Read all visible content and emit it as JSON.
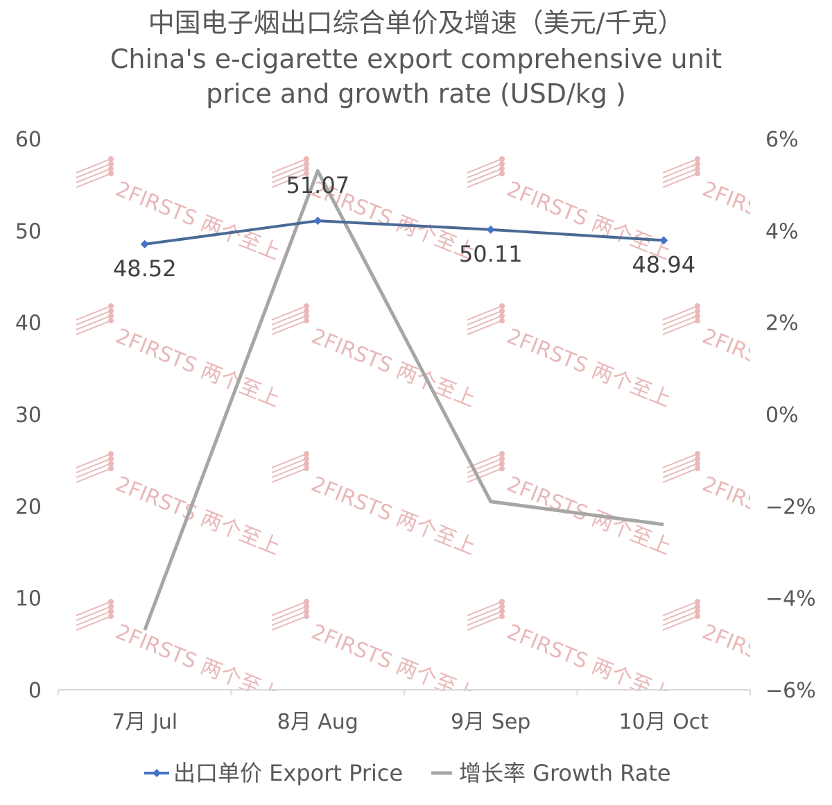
{
  "chart_data": {
    "type": "line",
    "title": "中国电子烟出口综合单价及增速（美元/千克）",
    "subtitle_line1": "China's e-cigarette export comprehensive unit",
    "subtitle_line2": "price and growth rate (USD/kg )",
    "categories": [
      "7月 Jul",
      "8月 Aug",
      "9月 Sep",
      "10月 Oct"
    ],
    "y_left": {
      "min": 0,
      "max": 60,
      "ticks": [
        "60",
        "50",
        "40",
        "30",
        "20",
        "10",
        "0"
      ]
    },
    "y_right": {
      "min": -6,
      "max": 6,
      "ticks": [
        "6%",
        "4%",
        "2%",
        "0%",
        "−2%",
        "−4%",
        "−6%"
      ]
    },
    "series": [
      {
        "name": "出口单价 Export Price",
        "axis": "left",
        "color": "#4472c4",
        "values": [
          48.52,
          51.07,
          50.11,
          48.94
        ],
        "labels": [
          "48.52",
          "51.07",
          "50.11",
          "48.94"
        ],
        "marker": "diamond"
      },
      {
        "name": "增长率 Growth Rate",
        "axis": "right",
        "color": "#a6a6a6",
        "values": [
          -4.7,
          5.3,
          -1.9,
          -2.4
        ]
      }
    ],
    "legend_position": "bottom",
    "grid": false
  },
  "watermark": {
    "text": "2FIRSTS 两个至上",
    "color": "#e9b8b8"
  }
}
